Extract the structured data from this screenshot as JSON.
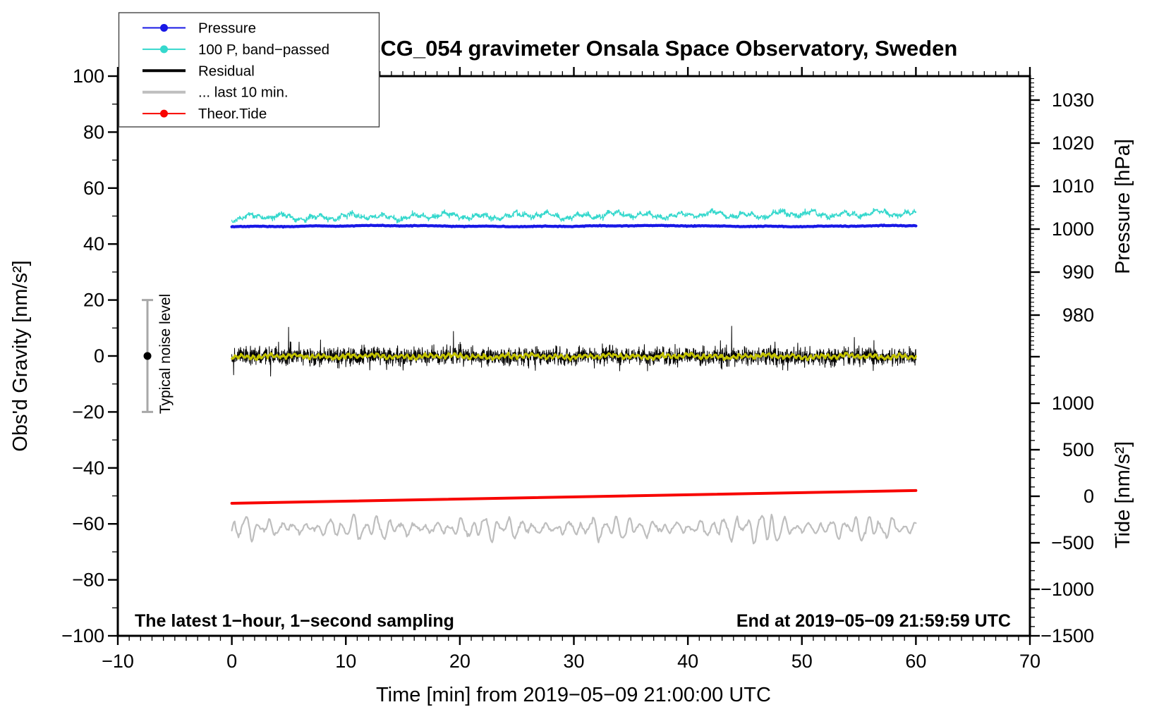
{
  "title": "SCG_054 gravimeter Onsala Space Observatory, Sweden",
  "annotations": {
    "bottom_left": "The latest 1−hour, 1−second sampling",
    "bottom_right": "End at 2019−05−09 21:59:59 UTC"
  },
  "noise_bar": {
    "label": "Typical noise level",
    "x_minutes": -7.4,
    "center_value": 0,
    "half_range_value": 20,
    "bar_color": "#a8a8a8",
    "dot_color": "#000000"
  },
  "legend": {
    "items": [
      {
        "label": "Pressure",
        "color": "#1818e6",
        "marker": true,
        "line_width": 2
      },
      {
        "label": "100 P, band−passed",
        "color": "#35d8cd",
        "marker": true,
        "line_width": 2
      },
      {
        "label": "Residual",
        "color": "#000000",
        "marker": false,
        "line_width": 4
      },
      {
        "label": "... last 10 min.",
        "color": "#bebebe",
        "marker": false,
        "line_width": 4
      },
      {
        "label": "Theor.Tide",
        "color": "#f80400",
        "marker": true,
        "line_width": 2
      }
    ]
  },
  "axes": {
    "x": {
      "title": "Time [min] from 2019−05−09 21:00:00 UTC",
      "range": [
        -10,
        70
      ],
      "major_tick_values": [
        -10,
        0,
        10,
        20,
        30,
        40,
        50,
        60,
        70
      ],
      "tick_labels": [
        "−10",
        "0",
        "10",
        "20",
        "30",
        "40",
        "50",
        "60",
        "70"
      ],
      "minor_tick_step": 1
    },
    "y_left": {
      "title": "Obs'd Gravity [nm/s²]",
      "range": [
        -100,
        100
      ],
      "major_tick_values": [
        100,
        80,
        60,
        40,
        20,
        0,
        -20,
        -40,
        -60,
        -80,
        -100
      ],
      "tick_labels": [
        "100",
        "80",
        "60",
        "40",
        "20",
        "0",
        "−20",
        "−40",
        "−60",
        "−80",
        "−100"
      ],
      "minor_tick_step": 10
    },
    "y_right_top": {
      "title": "Pressure [hPa]",
      "major_tick_values": [
        1030,
        1020,
        1010,
        1000,
        990,
        980
      ],
      "tick_labels": [
        "1030",
        "1020",
        "1010",
        "1000",
        "990",
        "980"
      ],
      "minor_tick_step": 1
    },
    "y_right_bottom": {
      "title": "Tide [nm/s²]",
      "major_tick_values": [
        1500,
        1000,
        500,
        0,
        -500,
        -1000,
        -1500
      ],
      "tick_labels": [
        "",
        "1000",
        "500",
        "0",
        "−500",
        "−1000",
        "−1500"
      ],
      "minor_tick_step": 100
    }
  },
  "chart_data": {
    "type": "line",
    "title": "SCG_054 gravimeter Onsala Space Observatory, Sweden",
    "xlabel": "Time [min] from 2019−05−09 21:00:00 UTC",
    "x_data_range_minutes": [
      0,
      60
    ],
    "x_axis_range_minutes": [
      -10,
      70
    ],
    "left_axis": {
      "label": "Obs'd Gravity [nm/s²]",
      "range": [
        -100,
        100
      ]
    },
    "right_axis_pressure": {
      "label": "Pressure [hPa]",
      "visible_major_range": [
        980,
        1030
      ]
    },
    "right_axis_tide": {
      "label": "Tide [nm/s²]",
      "visible_major_range": [
        -1500,
        1000
      ]
    },
    "series": [
      {
        "name": "Pressure",
        "axis": "pressure_hPa",
        "color": "#1818e6",
        "style": "thick-flat",
        "mean_hPa": 1000.7,
        "peak_variation_hPa": 0.3
      },
      {
        "name": "100 P, band−passed",
        "axis": "gravity_nm_s2",
        "color": "#35d8cd",
        "style": "noisy",
        "center": 49.6,
        "drift_to": 47.8,
        "amplitude": 1.5
      },
      {
        "name": "Residual",
        "axis": "gravity_nm_s2",
        "color": "#000000",
        "style": "dense-noise",
        "center": 0,
        "typical_sigma": 1.8,
        "spike_peak": 8
      },
      {
        "name": "Residual smoothed overlay (unlabeled)",
        "axis": "gravity_nm_s2",
        "color": "#c3c300",
        "style": "smooth-wiggle",
        "center": 0,
        "amplitude": 1.2
      },
      {
        "name": "... last 10 min.",
        "axis": "gravity_nm_s2",
        "color": "#bebebe",
        "style": "oscillation",
        "center": -61.5,
        "typical_amplitude": 4,
        "burst_at_minute": 47,
        "burst_amplitude": 9
      },
      {
        "name": "Theor.Tide",
        "axis": "tide_nm_s2",
        "color": "#f80400",
        "style": "near-linear",
        "start_value": -76,
        "mid_value": -8,
        "end_value": 61,
        "gravity_axis_equiv_start": -52.6,
        "gravity_axis_equiv_end": -48.1
      }
    ],
    "legend_position": "top-left",
    "grid": false
  }
}
